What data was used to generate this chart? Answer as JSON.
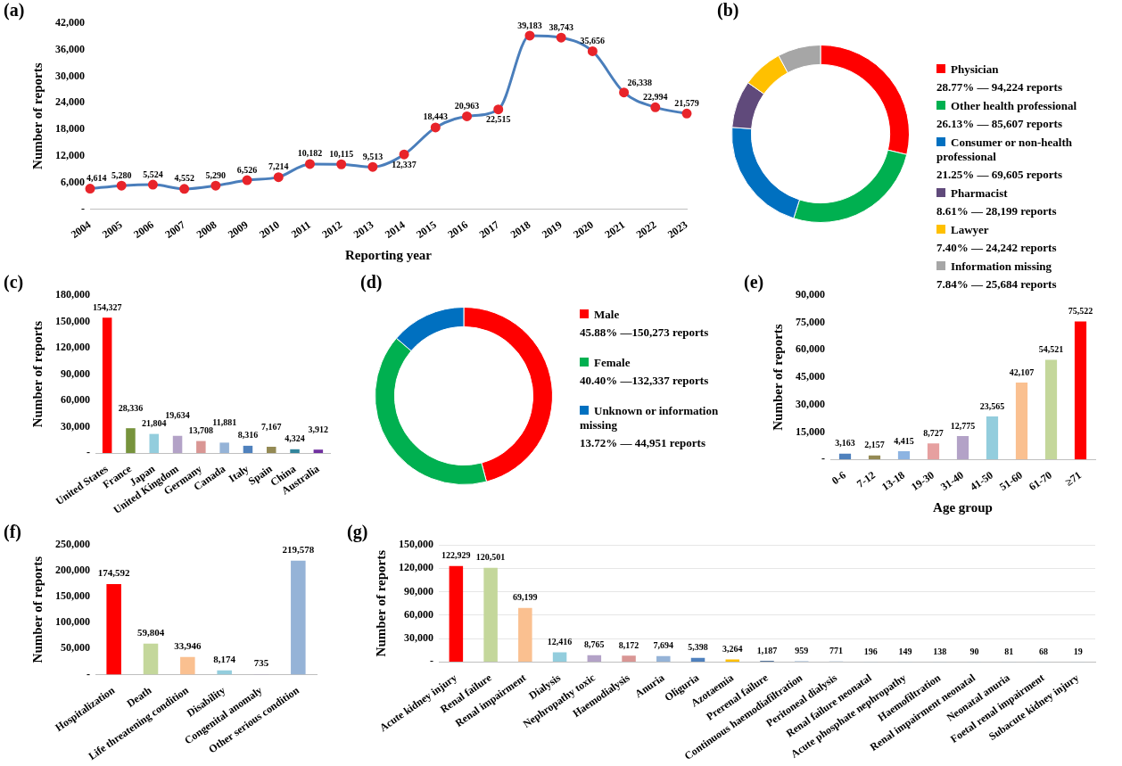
{
  "chart_data": [
    {
      "type": "line",
      "title": "(a)",
      "xlabel": "Reporting year",
      "ylabel": "Number of reports",
      "categories": [
        "2004",
        "2005",
        "2006",
        "2007",
        "2008",
        "2009",
        "2010",
        "2011",
        "2012",
        "2013",
        "2014",
        "2015",
        "2016",
        "2017",
        "2018",
        "2019",
        "2020",
        "2021",
        "2022",
        "2023"
      ],
      "series": [
        {
          "color": "#4a7ebb",
          "colors": [
            "#e8242a",
            "#e8242a",
            "#e8242a",
            "#e8242a",
            "#e8242a",
            "#e8242a",
            "#e8242a",
            "#e8242a",
            "#e8242a",
            "#e8242a",
            "#e8242a",
            "#e8242a",
            "#e8242a",
            "#e8242a",
            "#e8242a",
            "#e8242a",
            "#e8242a",
            "#e8242a",
            "#e8242a",
            "#e8242a"
          ],
          "values": [
            4614,
            5280,
            5524,
            4552,
            5290,
            6526,
            7214,
            10182,
            10115,
            9513,
            12337,
            18443,
            20963,
            22515,
            39183,
            38743,
            35656,
            26338,
            22994,
            21579
          ],
          "value_labels": [
            "4,614",
            "5,280",
            "5,524",
            "4,552",
            "5,290",
            "6,526",
            "7,214",
            "10,182",
            "10,115",
            "9,513",
            "12,337",
            "18,443",
            "20,963",
            "22,515",
            "39,183",
            "38,743",
            "35,656",
            "26,338",
            "22,994",
            "21,579"
          ]
        }
      ],
      "marker": "circle",
      "ylim": [
        0,
        42000
      ],
      "yticks": [
        {
          "value": 0,
          "label": "-"
        },
        {
          "value": 6000,
          "label": "6,000"
        },
        {
          "value": 12000,
          "label": "12,000"
        },
        {
          "value": 18000,
          "label": "18,000"
        },
        {
          "value": 24000,
          "label": "24,000"
        },
        {
          "value": 30000,
          "label": "30,000"
        },
        {
          "value": 36000,
          "label": "36,000"
        },
        {
          "value": 42000,
          "label": "42,000"
        }
      ]
    },
    {
      "type": "donut",
      "title": "(b)",
      "categories": [
        "Physician",
        "Other health professional",
        "Consumer or non-health professional",
        "Pharmacist",
        "Lawyer",
        "Information missing"
      ],
      "values": [
        94224,
        85607,
        69605,
        28199,
        24242,
        25684
      ],
      "colors": [
        "#ff0000",
        "#00b050",
        "#0070c0",
        "#604a7b",
        "#ffc000",
        "#a6a6a6"
      ],
      "value_labels": [
        "28.77% — 94,224 reports",
        "26.13% — 85,607 reports",
        "21.25% — 69,605 reports",
        "8.61% — 28,199 reports",
        "7.40% — 24,242 reports",
        "7.84% — 25,684 reports"
      ],
      "legend": "right"
    },
    {
      "type": "bar",
      "title": "(c)",
      "ylabel": "Number of reports",
      "categories": [
        "United States",
        "France",
        "Japan",
        "United Kingdom",
        "Germany",
        "Canada",
        "Italy",
        "Spain",
        "China",
        "Australia"
      ],
      "values": [
        154327,
        28336,
        21804,
        19634,
        13708,
        11881,
        8316,
        7167,
        4324,
        3912
      ],
      "value_labels": [
        "154,327",
        "28,336",
        "21,804",
        "19,634",
        "13,708",
        "11,881",
        "8,316",
        "7,167",
        "4,324",
        "3,912"
      ],
      "colors": [
        "#ff0000",
        "#77933c",
        "#93cddd",
        "#b3a2c7",
        "#d99694",
        "#95b3d7",
        "#4f81bd",
        "#948a54",
        "#31859c",
        "#7030a0"
      ],
      "ylim": [
        0,
        180000
      ],
      "yticks": [
        {
          "value": 0,
          "label": "-"
        },
        {
          "value": 30000,
          "label": "30,000"
        },
        {
          "value": 60000,
          "label": "60,000"
        },
        {
          "value": 90000,
          "label": "90,000"
        },
        {
          "value": 120000,
          "label": "120,000"
        },
        {
          "value": 150000,
          "label": "150,000"
        },
        {
          "value": 180000,
          "label": "180,000"
        }
      ]
    },
    {
      "type": "donut",
      "title": "(d)",
      "categories": [
        "Male",
        "Female",
        "Unknown or information missing"
      ],
      "values": [
        150273,
        132337,
        44951
      ],
      "colors": [
        "#ff0000",
        "#00b050",
        "#0070c0"
      ],
      "value_labels": [
        "45.88% —150,273 reports",
        "40.40% —132,337 reports",
        "13.72% — 44,951 reports"
      ],
      "legend": "right"
    },
    {
      "type": "bar",
      "title": "(e)",
      "xlabel": "Age group",
      "ylabel": "Number of reports",
      "categories": [
        "0-6",
        "7-12",
        "13-18",
        "19-30",
        "31-40",
        "41-50",
        "51-60",
        "61-70",
        "≥71"
      ],
      "values": [
        3163,
        2157,
        4415,
        8727,
        12775,
        23565,
        42107,
        54521,
        75522
      ],
      "value_labels": [
        "3,163",
        "2,157",
        "4,415",
        "8,727",
        "12,775",
        "23,565",
        "42,107",
        "54,521",
        "75,522"
      ],
      "colors": [
        "#4f81bd",
        "#948a54",
        "#8db4e2",
        "#e6a0a0",
        "#b3a2c7",
        "#93cddd",
        "#fac090",
        "#c4d79b",
        "#ff0000"
      ],
      "ylim": [
        0,
        90000
      ],
      "yticks": [
        {
          "value": 0,
          "label": "-"
        },
        {
          "value": 15000,
          "label": "15,000"
        },
        {
          "value": 30000,
          "label": "30,000"
        },
        {
          "value": 45000,
          "label": "45,000"
        },
        {
          "value": 60000,
          "label": "60,000"
        },
        {
          "value": 75000,
          "label": "75,000"
        },
        {
          "value": 90000,
          "label": "90,000"
        }
      ]
    },
    {
      "type": "bar",
      "title": "(f)",
      "ylabel": "Number of reports",
      "categories": [
        "Hospitalization",
        "Death",
        "Life threatening condition",
        "Disability",
        "Congenital anomaly",
        "Other serious condition"
      ],
      "values": [
        174592,
        59804,
        33946,
        8174,
        735,
        219578
      ],
      "value_labels": [
        "174,592",
        "59,804",
        "33,946",
        "8,174",
        "735",
        "219,578"
      ],
      "colors": [
        "#ff0000",
        "#c4d79b",
        "#fac090",
        "#93cddd",
        "#b3a2c7",
        "#95b3d7"
      ],
      "ylim": [
        0,
        250000
      ],
      "yticks": [
        {
          "value": 0,
          "label": "-"
        },
        {
          "value": 50000,
          "label": "50,000"
        },
        {
          "value": 100000,
          "label": "100,000"
        },
        {
          "value": 150000,
          "label": "150,000"
        },
        {
          "value": 200000,
          "label": "200,000"
        },
        {
          "value": 250000,
          "label": "250,000"
        }
      ]
    },
    {
      "type": "bar",
      "title": "(g)",
      "ylabel": "Number of reports",
      "categories": [
        "Acute kidney injury",
        "Renal failure",
        "Renal impairment",
        "Dialysis",
        "Nephropathy toxic",
        "Haemodialysis",
        "Anuria",
        "Oliguria",
        "Azotaemia",
        "Prerenal failure",
        "Continuous haemodiafiltration",
        "Peritoneal dialysis",
        "Renal failure neonatal",
        "Acute phosphate nephropathy",
        "Haemofiltration",
        "Renal impairment neonatal",
        "Neonatal anuria",
        "Foetal renal impairment",
        "Subacute kidney injury"
      ],
      "values": [
        122929,
        120501,
        69199,
        12416,
        8765,
        8172,
        7694,
        5398,
        3264,
        1187,
        959,
        771,
        196,
        149,
        138,
        90,
        81,
        68,
        19
      ],
      "value_labels": [
        "122,929",
        "120,501",
        "69,199",
        "12,416",
        "8,765",
        "8,172",
        "7,694",
        "5,398",
        "3,264",
        "1,187",
        "959",
        "771",
        "196",
        "149",
        "138",
        "90",
        "81",
        "68",
        "19"
      ],
      "colors": [
        "#ff0000",
        "#c4d79b",
        "#fac090",
        "#93cddd",
        "#b3a2c7",
        "#d99694",
        "#95b3d7",
        "#4f81bd",
        "#ffc000",
        "#1f497d",
        "#95b3d7",
        "#95b3d7",
        "#95b3d7",
        "#95b3d7",
        "#95b3d7",
        "#95b3d7",
        "#95b3d7",
        "#95b3d7",
        "#95b3d7"
      ],
      "grid": "y",
      "ylim": [
        0,
        150000
      ],
      "yticks": [
        {
          "value": 0,
          "label": "-"
        },
        {
          "value": 30000,
          "label": "30,000"
        },
        {
          "value": 60000,
          "label": "60,000"
        },
        {
          "value": 90000,
          "label": "90,000"
        },
        {
          "value": 120000,
          "label": "120,000"
        },
        {
          "value": 150000,
          "label": "150,000"
        }
      ]
    }
  ]
}
